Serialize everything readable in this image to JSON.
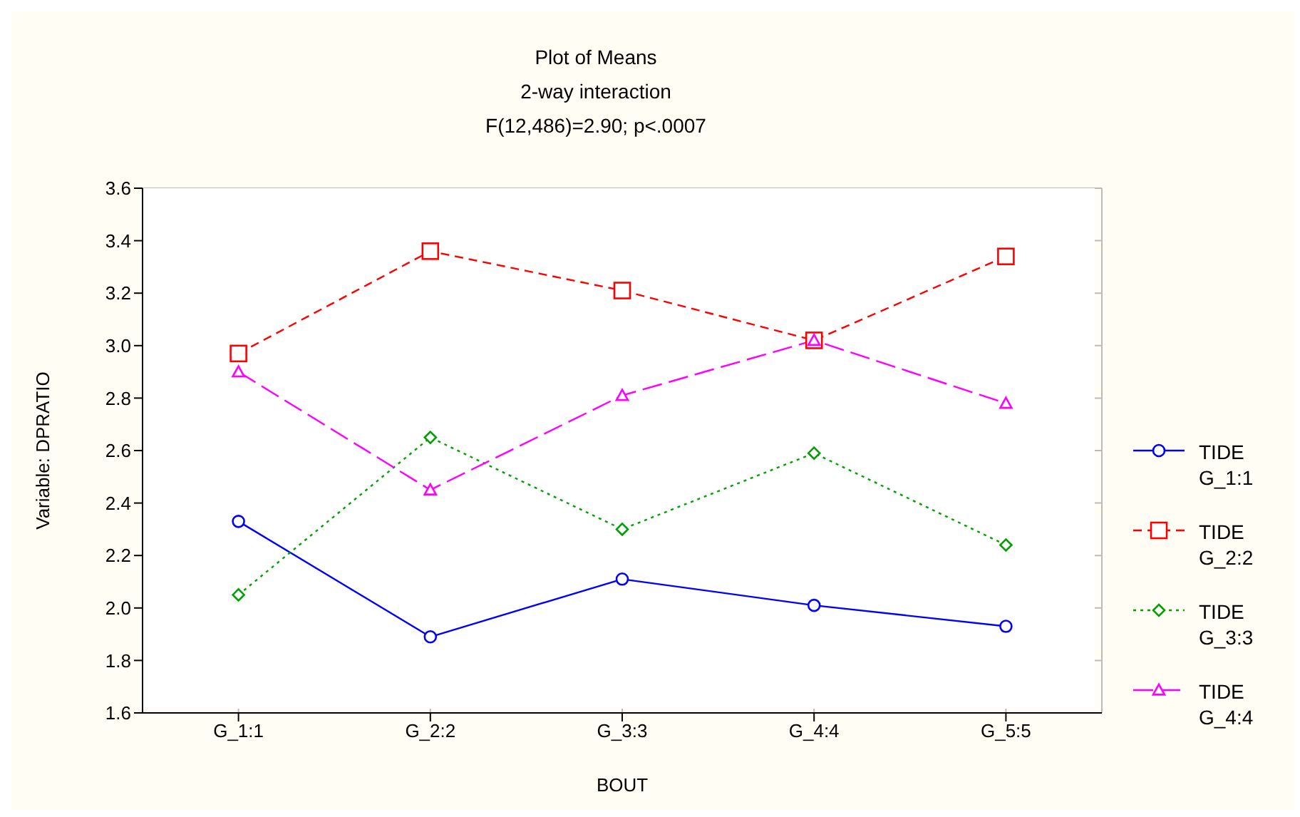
{
  "chart_data": {
    "type": "line",
    "title": "Plot of Means",
    "subtitle": "2-way interaction",
    "annotations": [
      "F(12,486)=2.90; p<.0007"
    ],
    "xlabel": "BOUT",
    "ylabel": "Variable: DPRATIO",
    "categories": [
      "G_1:1",
      "G_2:2",
      "G_3:3",
      "G_4:4",
      "G_5:5"
    ],
    "series": [
      {
        "name": "TIDE G_1:1",
        "color": "#0000ff",
        "values": [
          2.33,
          1.89,
          2.11,
          2.01,
          1.93
        ],
        "marker": "circle",
        "line_style": "solid"
      },
      {
        "name": "TIDE G_2:2",
        "color": "#ff0000",
        "values": [
          2.97,
          3.36,
          3.21,
          3.02,
          3.34
        ],
        "marker": "square",
        "line_style": "dashed"
      },
      {
        "name": "TIDE G_3:3",
        "color": "#00a000",
        "values": [
          2.05,
          2.65,
          2.3,
          2.59,
          2.24
        ],
        "marker": "diamond",
        "line_style": "dotted"
      },
      {
        "name": "TIDE G_4:4",
        "color": "#ff00ff",
        "values": [
          2.9,
          2.45,
          2.81,
          3.02,
          2.78
        ],
        "marker": "triangle",
        "line_style": "longdash"
      }
    ],
    "ylim": [
      1.6,
      3.6
    ],
    "yticks": [
      1.6,
      1.8,
      {
        "value": 2,
        "label": "2.0"
      },
      2.2,
      2.4,
      2.6,
      2.8,
      {
        "value": 3,
        "label": "3.0"
      },
      3.2,
      3.4,
      3.6
    ],
    "grid": true,
    "legend": "right"
  }
}
